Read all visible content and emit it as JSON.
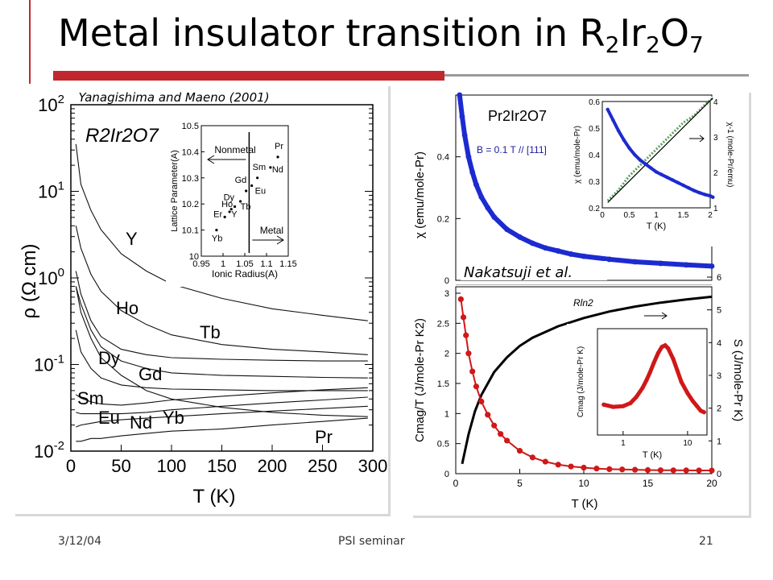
{
  "slide": {
    "title_parts": [
      "Metal insulator transition in R",
      "2",
      "Ir",
      "2",
      "O",
      "7"
    ],
    "footer_date": "3/12/04",
    "footer_center": "PSI seminar",
    "footer_page": "21"
  },
  "chart_data": [
    {
      "type": "line",
      "credit": "Yanagishima and Maeno (2001)",
      "compound_label": "R2Ir2O7",
      "xlabel": "T (K)",
      "ylabel": "ρ (Ω cm)",
      "xlim": [
        0,
        300
      ],
      "ylim_log10": [
        -2,
        2
      ],
      "xticks": [
        "0",
        "50",
        "100",
        "150",
        "200",
        "250",
        "300"
      ],
      "yticks": [
        "10-2",
        "10-1",
        "100",
        "101",
        "102"
      ],
      "series": [
        {
          "name": "Y",
          "x": [
            5,
            10,
            20,
            30,
            50,
            75,
            100,
            150,
            200,
            250,
            295
          ],
          "y": [
            35,
            12,
            6,
            3.6,
            1.9,
            1.2,
            0.85,
            0.58,
            0.44,
            0.37,
            0.32
          ]
        },
        {
          "name": "Ho",
          "x": [
            5,
            10,
            20,
            30,
            50,
            75,
            100,
            150,
            200,
            250,
            295
          ],
          "y": [
            4,
            2.2,
            1.1,
            0.7,
            0.42,
            0.29,
            0.22,
            0.17,
            0.15,
            0.14,
            0.13
          ]
        },
        {
          "name": "Tb",
          "x": [
            5,
            10,
            20,
            30,
            50,
            75,
            100,
            150,
            200,
            250,
            295
          ],
          "y": [
            1.2,
            0.65,
            0.32,
            0.21,
            0.15,
            0.13,
            0.12,
            0.115,
            0.112,
            0.11,
            0.11
          ]
        },
        {
          "name": "Dy",
          "x": [
            5,
            10,
            20,
            30,
            50,
            75,
            100,
            150,
            200,
            250,
            295
          ],
          "y": [
            0.8,
            0.5,
            0.25,
            0.16,
            0.11,
            0.09,
            0.08,
            0.075,
            0.073,
            0.071,
            0.07
          ]
        },
        {
          "name": "Gd",
          "x": [
            5,
            10,
            20,
            30,
            50,
            75,
            100,
            150,
            200,
            250,
            295
          ],
          "y": [
            0.25,
            0.14,
            0.09,
            0.07,
            0.058,
            0.054,
            0.052,
            0.051,
            0.05,
            0.05,
            0.05
          ]
        },
        {
          "name": "Sm",
          "x": [
            5,
            10,
            20,
            30,
            50,
            75,
            100,
            150,
            200,
            250,
            295
          ],
          "y": [
            0.045,
            0.041,
            0.037,
            0.035,
            0.034,
            0.036,
            0.039,
            0.043,
            0.047,
            0.051,
            0.054
          ]
        },
        {
          "name": "Eu",
          "x": [
            5,
            10,
            20,
            30,
            50,
            75,
            100,
            150,
            200,
            250,
            295
          ],
          "y": [
            0.028,
            0.027,
            0.027,
            0.027,
            0.027,
            0.028,
            0.03,
            0.033,
            0.036,
            0.039,
            0.042
          ]
        },
        {
          "name": "Nd",
          "x": [
            5,
            10,
            20,
            30,
            50,
            75,
            100,
            150,
            200,
            250,
            295
          ],
          "y": [
            0.019,
            0.02,
            0.021,
            0.022,
            0.023,
            0.024,
            0.025,
            0.027,
            0.029,
            0.031,
            0.033
          ]
        },
        {
          "name": "Yb",
          "x": [
            5,
            10,
            20,
            30,
            50,
            75,
            100,
            150,
            200,
            250,
            295
          ],
          "y": [
            0.8,
            0.4,
            0.2,
            0.12,
            0.075,
            0.05,
            0.04,
            0.032,
            0.028,
            0.026,
            0.025
          ]
        },
        {
          "name": "Pr",
          "x": [
            5,
            10,
            20,
            30,
            50,
            75,
            100,
            150,
            200,
            250,
            295
          ],
          "y": [
            0.013,
            0.013,
            0.014,
            0.014,
            0.015,
            0.016,
            0.017,
            0.018,
            0.02,
            0.022,
            0.024
          ]
        }
      ],
      "inset": {
        "xlabel": "Ionic Radius(A)",
        "ylabel": "Lattice Parameter(A)",
        "xlim": [
          0.95,
          1.15
        ],
        "ylim": [
          10,
          10.5
        ],
        "xticks": [
          "0.95",
          "1",
          "1.05",
          "1.1",
          "1.15"
        ],
        "yticks": [
          "10",
          "10.1",
          "10.2",
          "10.3",
          "10.4",
          "10.5"
        ],
        "points": [
          {
            "label": "Yb",
            "x": 0.985,
            "y": 10.1
          },
          {
            "label": "Er",
            "x": 1.004,
            "y": 10.15
          },
          {
            "label": "Ho",
            "x": 1.015,
            "y": 10.17
          },
          {
            "label": "Y",
            "x": 1.019,
            "y": 10.18
          },
          {
            "label": "Dy",
            "x": 1.027,
            "y": 10.19
          },
          {
            "label": "Tb",
            "x": 1.04,
            "y": 10.21
          },
          {
            "label": "Gd",
            "x": 1.053,
            "y": 10.25
          },
          {
            "label": "Eu",
            "x": 1.066,
            "y": 10.27
          },
          {
            "label": "Sm",
            "x": 1.079,
            "y": 10.3
          },
          {
            "label": "Nd",
            "x": 1.109,
            "y": 10.34
          },
          {
            "label": "Pr",
            "x": 1.126,
            "y": 10.38
          }
        ],
        "nonmetal_label": "Nonmetal",
        "metal_label": "Metal"
      }
    },
    {
      "type": "scatter",
      "credit": "Nakatsuji et al.",
      "compound_label": "Pr2Ir2O7",
      "field_label": "B = 0.1 T // [111]",
      "ylabel": "χ (emu/mole-Pr)",
      "ylim": [
        0,
        0.6
      ],
      "yticks": [
        "0",
        "0.2",
        "0.4"
      ],
      "x": [
        0.3,
        0.5,
        0.7,
        1,
        1.3,
        1.6,
        2,
        2.5,
        3,
        4,
        5,
        6,
        7,
        8,
        9,
        10,
        12,
        14,
        16,
        18,
        20
      ],
      "y": [
        0.6,
        0.53,
        0.47,
        0.4,
        0.35,
        0.31,
        0.27,
        0.235,
        0.205,
        0.165,
        0.14,
        0.12,
        0.105,
        0.095,
        0.085,
        0.078,
        0.068,
        0.06,
        0.055,
        0.05,
        0.046
      ],
      "inset": {
        "xlabel": "T (K)",
        "ylabel_left": "χ (emu/mole-Pr)",
        "ylabel_right": "χ-1 (mole-Pr/emu)",
        "xlim": [
          0,
          2
        ],
        "ylim_left": [
          0.2,
          0.6
        ],
        "ylim_right": [
          1,
          4
        ],
        "xticks": [
          "0",
          "0.5",
          "1",
          "1.5",
          "2"
        ],
        "yticks_left": [
          "0.2",
          "0.3",
          "0.4",
          "0.5",
          "0.6"
        ],
        "yticks_right": [
          "1",
          "2",
          "3",
          "4"
        ],
        "chi_x": [
          0.1,
          0.2,
          0.3,
          0.4,
          0.5,
          0.6,
          0.7,
          0.8,
          0.9,
          1.0,
          1.1,
          1.2,
          1.3,
          1.4,
          1.5,
          1.6,
          1.7,
          1.8,
          1.9,
          2.0,
          2.05
        ],
        "chi_y": [
          0.57,
          0.53,
          0.49,
          0.455,
          0.425,
          0.4,
          0.38,
          0.365,
          0.35,
          0.335,
          0.325,
          0.315,
          0.305,
          0.295,
          0.285,
          0.275,
          0.265,
          0.257,
          0.25,
          0.245,
          0.24
        ],
        "inv_x": [
          0.1,
          0.3,
          0.5,
          0.7,
          0.9,
          1.1,
          1.3,
          1.5,
          1.7,
          1.9,
          2.05
        ],
        "inv_y": [
          1.2,
          1.5,
          1.9,
          2.2,
          2.5,
          2.8,
          3.1,
          3.4,
          3.6,
          3.9,
          4.1
        ]
      }
    },
    {
      "type": "scatter",
      "xlabel": "T (K)",
      "ylabel_left": "Cmag/T (J/mole-Pr K2)",
      "ylabel_right": "S (J/mole-Pr K)",
      "xlim": [
        0,
        20
      ],
      "ylim_left": [
        0,
        3
      ],
      "ylim_right": [
        0,
        6
      ],
      "xticks": [
        "0",
        "5",
        "10",
        "15",
        "20"
      ],
      "yticks_left": [
        "0",
        "0.5",
        "1",
        "1.5",
        "2",
        "2.5",
        "3"
      ],
      "yticks_right": [
        "0",
        "1",
        "2",
        "3",
        "4",
        "5",
        "6"
      ],
      "rln2_label": "Rln2",
      "cmag_x": [
        0.4,
        0.6,
        0.8,
        1,
        1.3,
        1.6,
        2,
        2.5,
        3,
        3.5,
        4,
        5,
        6,
        7,
        8,
        9,
        10,
        11,
        12,
        13,
        14,
        15,
        16,
        17,
        18,
        19,
        20
      ],
      "cmag_y": [
        2.9,
        2.6,
        2.3,
        2.0,
        1.7,
        1.45,
        1.2,
        0.98,
        0.8,
        0.66,
        0.55,
        0.38,
        0.27,
        0.2,
        0.15,
        0.12,
        0.1,
        0.085,
        0.075,
        0.07,
        0.065,
        0.06,
        0.058,
        0.056,
        0.055,
        0.054,
        0.053
      ],
      "s_x": [
        0.5,
        1,
        1.5,
        2,
        3,
        4,
        5,
        6,
        8,
        10,
        12,
        14,
        16,
        18,
        20
      ],
      "s_y": [
        0.3,
        1.2,
        1.9,
        2.4,
        3.1,
        3.55,
        3.9,
        4.15,
        4.5,
        4.75,
        4.95,
        5.1,
        5.22,
        5.32,
        5.4
      ],
      "inset": {
        "xlabel": "T (K)",
        "ylabel": "Cmag (J/mole-Pr K)",
        "xscale": "log",
        "xticks": [
          "1",
          "10"
        ],
        "x": [
          0.5,
          0.7,
          1,
          1.3,
          1.6,
          2,
          2.3,
          2.6,
          3,
          3.5,
          4,
          4.5,
          5,
          6,
          7,
          8,
          10,
          12,
          14,
          16,
          18
        ],
        "y": [
          1.0,
          0.97,
          0.98,
          1.02,
          1.1,
          1.22,
          1.32,
          1.42,
          1.55,
          1.68,
          1.76,
          1.78,
          1.74,
          1.6,
          1.44,
          1.3,
          1.15,
          1.05,
          0.98,
          0.92,
          0.9
        ]
      }
    }
  ]
}
